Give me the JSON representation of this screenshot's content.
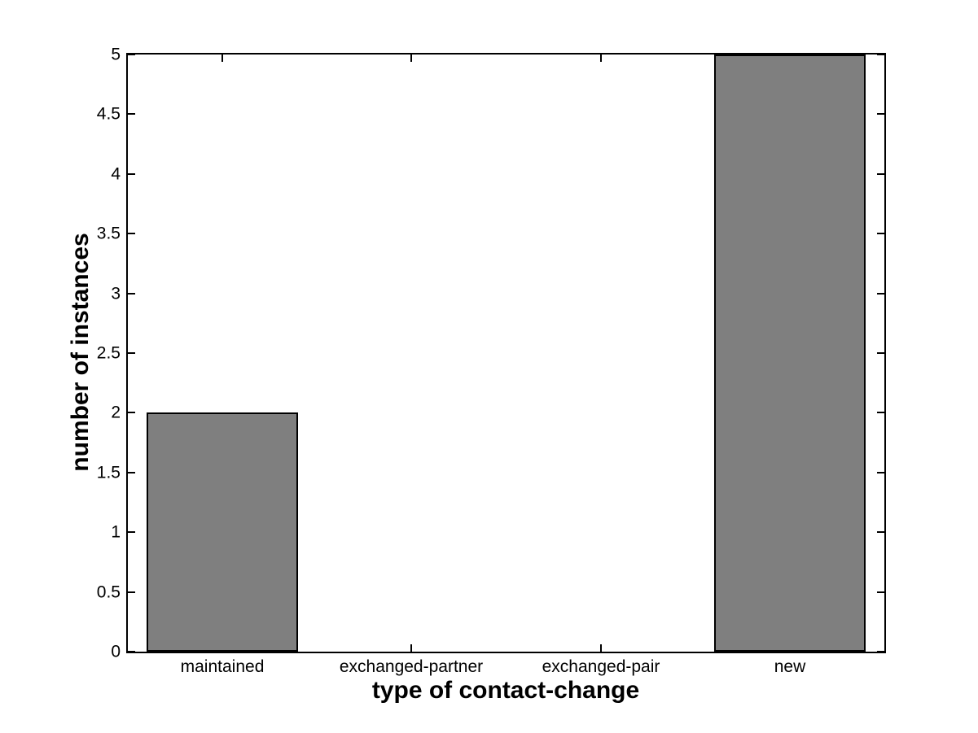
{
  "chart_data": {
    "type": "bar",
    "xlabel": "type of contact-change",
    "ylabel": "number of instances",
    "categories": [
      "maintained",
      "exchanged-partner",
      "exchanged-pair",
      "new"
    ],
    "values": [
      2,
      0,
      0,
      5
    ],
    "ylim": [
      0,
      5
    ],
    "yticks": [
      0,
      0.5,
      1,
      1.5,
      2,
      2.5,
      3,
      3.5,
      4,
      4.5,
      5
    ],
    "ytick_labels": [
      "0",
      "0.5",
      "1",
      "1.5",
      "2",
      "2.5",
      "3",
      "3.5",
      "4",
      "4.5",
      "5"
    ],
    "xlim": [
      0.5,
      4.5
    ],
    "bar_width": 0.8,
    "grid": false,
    "legend": "none",
    "tick_direction": "in",
    "box": true,
    "colors": {
      "bar_fill": "#7f7f7f",
      "bar_edge": "#000000",
      "axis": "#000000",
      "text": "#000000",
      "background": "#ffffff"
    }
  }
}
